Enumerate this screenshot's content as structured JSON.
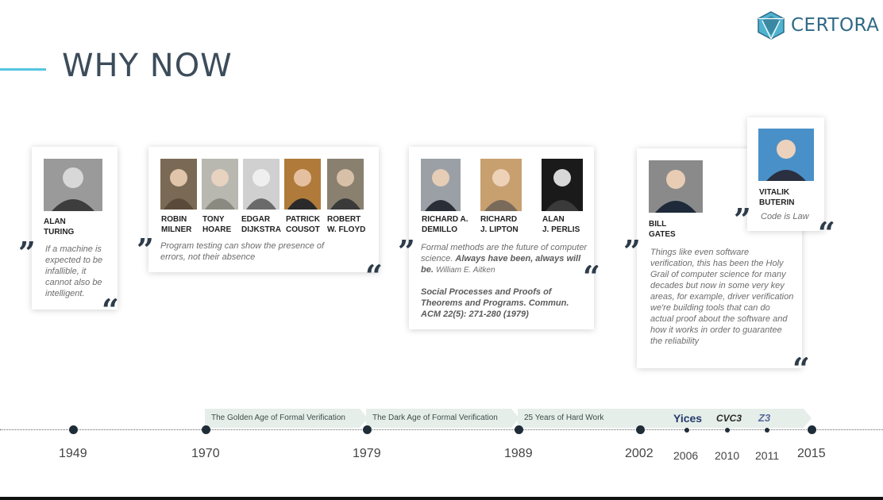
{
  "header": {
    "title": "WHY NOW",
    "brand": "CERTORA",
    "logo_icon": "certora-logo-icon",
    "accent_color": "#56c5e0"
  },
  "cards": {
    "turing": {
      "people": [
        {
          "first": "ALAN",
          "last": "TURING"
        }
      ],
      "quote": "If a machine is expected to be infallible, it cannot also be intelligent."
    },
    "dijkstra": {
      "people": [
        {
          "first": "ROBIN",
          "last": "MILNER"
        },
        {
          "first": "TONY",
          "last": "HOARE"
        },
        {
          "first": "EDGAR",
          "last": "DIJKSTRA"
        },
        {
          "first": "PATRICK",
          "last": "COUSOT"
        },
        {
          "first": "ROBERT",
          "last": "W. FLOYD"
        }
      ],
      "quote": "Program testing can show the presence of errors, not their absence"
    },
    "demillo": {
      "people": [
        {
          "first": "RICHARD A.",
          "last": "DEMILLO"
        },
        {
          "first": "RICHARD",
          "last": "J. LIPTON"
        },
        {
          "first": "ALAN",
          "last": "J. PERLIS"
        }
      ],
      "quote_main": "Formal methods are the future of computer science.",
      "quote_bold": "Always have been, always will be.",
      "quote_author": "William E. Aitken",
      "reference": "Social Processes and Proofs of Theorems and Programs. Commun. ACM 22(5): 271-280 (1979)"
    },
    "gates": {
      "people": [
        {
          "first": "BILL",
          "last": "GATES"
        }
      ],
      "quote": "Things like even software verification, this has been the Holy Grail of computer science for many decades but now in some very key areas, for example, driver verification we're building tools that can do actual proof about the software and how it works in order to guarantee the reliability"
    },
    "buterin": {
      "people": [
        {
          "first": "VITALIK",
          "last": "BUTERIN"
        }
      ],
      "quote": "Code is Law"
    }
  },
  "timeline": {
    "eras": [
      "The Golden Age of Formal Verification",
      "The Dark Age of Formal Verification",
      "25 Years of Hard Work"
    ],
    "years": [
      "1949",
      "1970",
      "1979",
      "1989",
      "2002",
      "2006",
      "2010",
      "2011",
      "2015"
    ],
    "tools": [
      "Yices",
      "CVC3",
      "Z3"
    ]
  }
}
